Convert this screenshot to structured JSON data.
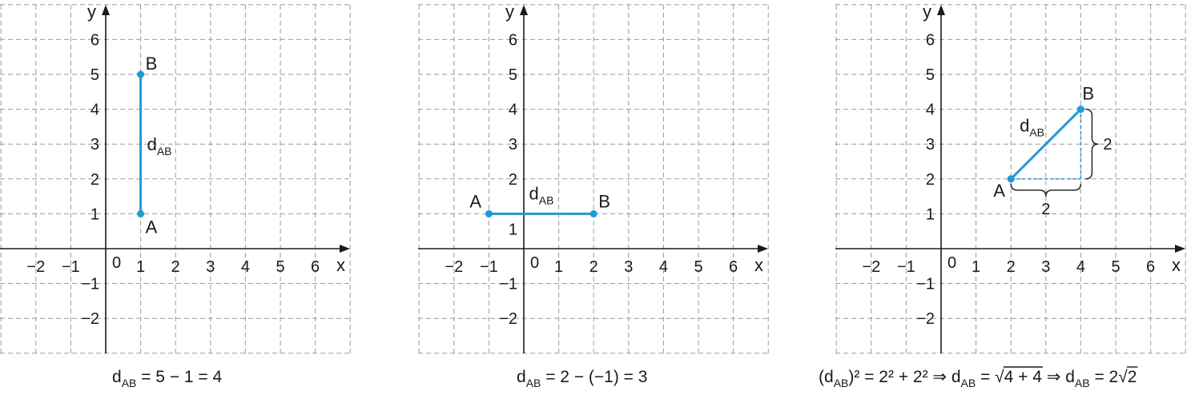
{
  "panels": [
    {
      "id": "panel-1",
      "x_range": [
        -3,
        7
      ],
      "y_range": [
        -3,
        7
      ],
      "x_ticks": [
        "−2",
        "−1",
        "",
        "1",
        "2",
        "3",
        "4",
        "5",
        "6"
      ],
      "x_tick_values": [
        -2,
        -1,
        0,
        1,
        2,
        3,
        4,
        5,
        6
      ],
      "y_ticks": [
        "−2",
        "−1",
        "",
        "1",
        "2",
        "3",
        "4",
        "5",
        "6"
      ],
      "y_tick_values": [
        -2,
        -1,
        0,
        1,
        2,
        3,
        4,
        5,
        6
      ],
      "origin_label": "0",
      "x_axis_name": "x",
      "y_axis_name": "y",
      "points": [
        {
          "name": "A",
          "x": 1,
          "y": 1
        },
        {
          "name": "B",
          "x": 1,
          "y": 5
        }
      ],
      "segment_label": "d",
      "segment_label_sub": "AB",
      "formula": {
        "d": "d",
        "sub": "AB",
        "rest": " = 5 − 1 = 4"
      }
    },
    {
      "id": "panel-2",
      "x_range": [
        -3,
        7
      ],
      "y_range": [
        -3,
        7
      ],
      "x_ticks": [
        "−2",
        "−1",
        "",
        "1",
        "2",
        "3",
        "4",
        "5",
        "6"
      ],
      "x_tick_values": [
        -2,
        -1,
        0,
        1,
        2,
        3,
        4,
        5,
        6
      ],
      "y_ticks": [
        "−2",
        "−1",
        "",
        "1",
        "2",
        "3",
        "4",
        "5",
        "6"
      ],
      "y_tick_values": [
        -2,
        -1,
        0,
        1,
        2,
        3,
        4,
        5,
        6
      ],
      "origin_label": "0",
      "x_axis_name": "x",
      "y_axis_name": "y",
      "points": [
        {
          "name": "A",
          "x": -1,
          "y": 1
        },
        {
          "name": "B",
          "x": 2,
          "y": 1
        }
      ],
      "segment_label": "d",
      "segment_label_sub": "AB",
      "formula": {
        "d": "d",
        "sub": "AB",
        "rest": " = 2 − (−1) = 3"
      }
    },
    {
      "id": "panel-3",
      "x_range": [
        -3,
        7
      ],
      "y_range": [
        -3,
        7
      ],
      "x_ticks": [
        "−2",
        "−1",
        "",
        "1",
        "2",
        "3",
        "4",
        "5",
        "6"
      ],
      "x_tick_values": [
        -2,
        -1,
        0,
        1,
        2,
        3,
        4,
        5,
        6
      ],
      "y_ticks": [
        "−2",
        "−1",
        "",
        "1",
        "2",
        "3",
        "4",
        "5",
        "6"
      ],
      "y_tick_values": [
        -2,
        -1,
        0,
        1,
        2,
        3,
        4,
        5,
        6
      ],
      "origin_label": "0",
      "x_axis_name": "x",
      "y_axis_name": "y",
      "points": [
        {
          "name": "A",
          "x": 2,
          "y": 2
        },
        {
          "name": "B",
          "x": 4,
          "y": 4
        }
      ],
      "segment_label": "d",
      "segment_label_sub": "AB",
      "horizontal_leg_label": "2",
      "vertical_leg_label": "2",
      "formula": {
        "part1": "(d",
        "sub1": "AB",
        "part2": ")² = 2² + 2² ⇒ d",
        "sub2": "AB",
        "part3": " = ",
        "radicand": "4 + 4",
        "part4": " ⇒ d",
        "sub3": "AB",
        "part5": " = 2",
        "radicand2": "2"
      }
    }
  ]
}
